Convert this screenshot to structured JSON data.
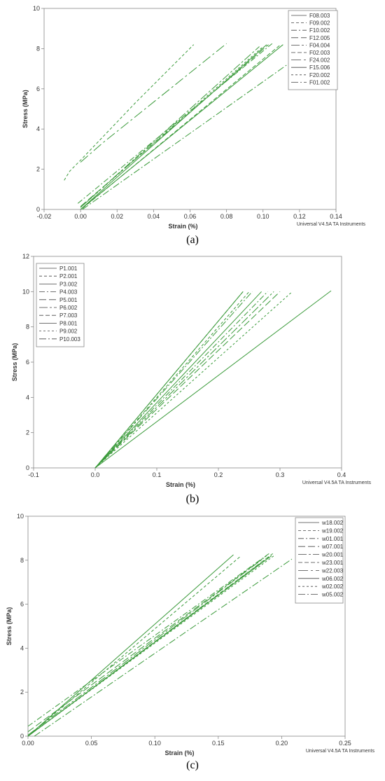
{
  "figure": {
    "panel_labels": [
      "(a)",
      "(b)",
      "(c)"
    ],
    "credit": "Universal V4.5A TA Instruments",
    "line_color": "#3a9a3a",
    "frame_color": "#888888"
  },
  "chart_data": [
    {
      "type": "line",
      "panel": "(a)",
      "xlabel": "Strain (%)",
      "ylabel": "Stress (MPa)",
      "xlim": [
        -0.02,
        0.14
      ],
      "ylim": [
        0,
        10
      ],
      "xticks": [
        -0.02,
        0,
        0.02,
        0.04,
        0.06,
        0.08,
        0.1,
        0.12,
        0.14
      ],
      "xtick_labels": [
        "-0.02",
        "0.00",
        "0.02",
        "0.04",
        "0.06",
        "0.08",
        "0.10",
        "0.12",
        "0.14"
      ],
      "yticks": [
        0,
        2,
        4,
        6,
        8,
        10
      ],
      "ytick_labels": [
        "0",
        "2",
        "4",
        "6",
        "8",
        "10"
      ],
      "legend_position": "top-right",
      "series": [
        {
          "name": "F08.003",
          "dash": "",
          "x": [
            0,
            0.102
          ],
          "y": [
            0,
            8.2
          ]
        },
        {
          "name": "F09.002",
          "dash": "4,3",
          "x": [
            -0.009,
            -0.006,
            0,
            0.03,
            0.062
          ],
          "y": [
            1.45,
            1.9,
            2.45,
            5.3,
            8.2
          ]
        },
        {
          "name": "F10.002",
          "dash": "8,3,2,3",
          "x": [
            -0.0015,
            0.105
          ],
          "y": [
            0.3,
            8.25
          ]
        },
        {
          "name": "F12.005",
          "dash": "10,4",
          "x": [
            0,
            0.103
          ],
          "y": [
            0.15,
            8.2
          ]
        },
        {
          "name": "F04.004",
          "dash": "12,3,3,3",
          "x": [
            0,
            0.098
          ],
          "y": [
            0.1,
            8.1
          ]
        },
        {
          "name": "F02.003",
          "dash": "6,3",
          "x": [
            0.001,
            0.109
          ],
          "y": [
            0.05,
            8.15
          ]
        },
        {
          "name": "F24.002",
          "dash": "14,4,3,4",
          "x": [
            0,
            0.012,
            0.08
          ],
          "y": [
            2.35,
            3.3,
            8.25
          ]
        },
        {
          "name": "F15.006",
          "dash": "",
          "x": [
            0,
            0.111
          ],
          "y": [
            0,
            8.2
          ]
        },
        {
          "name": "F20.002",
          "dash": "3,3",
          "x": [
            0,
            0.1
          ],
          "y": [
            0.1,
            8.1
          ]
        },
        {
          "name": "F01.002",
          "dash": "10,3,2,3",
          "x": [
            0.001,
            0.121
          ],
          "y": [
            0,
            7.7
          ]
        }
      ]
    },
    {
      "type": "line",
      "panel": "(b)",
      "xlabel": "Strain (%)",
      "ylabel": "Stress (MPa)",
      "xlim": [
        -0.1,
        0.4
      ],
      "ylim": [
        0,
        12
      ],
      "xticks": [
        -0.1,
        0,
        0.1,
        0.2,
        0.3,
        0.4
      ],
      "xtick_labels": [
        "-0.1",
        "0.0",
        "0.1",
        "0.2",
        "0.3",
        "0.4"
      ],
      "yticks": [
        0,
        2,
        4,
        6,
        8,
        10,
        12
      ],
      "ytick_labels": [
        "0",
        "2",
        "4",
        "6",
        "8",
        "10",
        "12"
      ],
      "legend_position": "top-left",
      "series": [
        {
          "name": "P1.001",
          "dash": "",
          "x": [
            0,
            0.24
          ],
          "y": [
            0,
            10
          ]
        },
        {
          "name": "P2.001",
          "dash": "4,3",
          "x": [
            0,
            0.25
          ],
          "y": [
            0,
            10
          ]
        },
        {
          "name": "P3.002",
          "dash": "",
          "x": [
            0,
            0.27
          ],
          "y": [
            0,
            10
          ]
        },
        {
          "name": "P4.003",
          "dash": "8,3,2,3",
          "x": [
            0,
            0.28
          ],
          "y": [
            0,
            10
          ]
        },
        {
          "name": "P5.001",
          "dash": "10,4",
          "x": [
            0,
            0.3
          ],
          "y": [
            0,
            10
          ]
        },
        {
          "name": "P6.002",
          "dash": "12,3,3,3",
          "x": [
            0,
            0.29
          ],
          "y": [
            0,
            10
          ]
        },
        {
          "name": "P7.003",
          "dash": "6,3",
          "x": [
            0,
            0.24
          ],
          "y": [
            0,
            10
          ]
        },
        {
          "name": "P8.001",
          "dash": "",
          "x": [
            0,
            0.383
          ],
          "y": [
            0,
            10.05
          ]
        },
        {
          "name": "P9.002",
          "dash": "3,3",
          "x": [
            0,
            0.32
          ],
          "y": [
            0,
            10
          ]
        },
        {
          "name": "P10.003",
          "dash": "10,3,2,3",
          "x": [
            0,
            0.255
          ],
          "y": [
            0,
            10
          ]
        }
      ]
    },
    {
      "type": "line",
      "panel": "(c)",
      "xlabel": "Strain (%)",
      "ylabel": "Stress (MPa)",
      "xlim": [
        0,
        0.25
      ],
      "ylim": [
        0,
        10
      ],
      "xticks": [
        0,
        0.05,
        0.1,
        0.15,
        0.2,
        0.25
      ],
      "xtick_labels": [
        "0.00",
        "0.05",
        "0.10",
        "0.15",
        "0.20",
        "0.25"
      ],
      "yticks": [
        0,
        2,
        4,
        6,
        8,
        10
      ],
      "ytick_labels": [
        "0",
        "2",
        "4",
        "6",
        "8",
        "10"
      ],
      "legend_position": "top-right",
      "series": [
        {
          "name": "w18.002",
          "dash": "",
          "x": [
            0,
            0.162
          ],
          "y": [
            0,
            8.25
          ]
        },
        {
          "name": "w19.002",
          "dash": "4,3",
          "x": [
            0,
            0.168
          ],
          "y": [
            0,
            8.2
          ]
        },
        {
          "name": "w01.001",
          "dash": "8,3,2,3",
          "x": [
            0,
            0.19
          ],
          "y": [
            0.45,
            8.3
          ]
        },
        {
          "name": "w07.001",
          "dash": "10,4",
          "x": [
            0,
            0.188
          ],
          "y": [
            0.2,
            8.2
          ]
        },
        {
          "name": "w20.001",
          "dash": "12,3,3,3",
          "x": [
            0,
            0.186
          ],
          "y": [
            0.05,
            8.1
          ]
        },
        {
          "name": "w23.001",
          "dash": "6,3",
          "x": [
            0,
            0.193
          ],
          "y": [
            0,
            8.3
          ]
        },
        {
          "name": "w22.003",
          "dash": "14,4,3,4",
          "x": [
            0,
            0.19
          ],
          "y": [
            0,
            8.15
          ]
        },
        {
          "name": "w06.002",
          "dash": "",
          "x": [
            0,
            0.192
          ],
          "y": [
            0,
            8.2
          ]
        },
        {
          "name": "w02.002",
          "dash": "3,3",
          "x": [
            0,
            0.195
          ],
          "y": [
            0,
            8.25
          ]
        },
        {
          "name": "w05.002",
          "dash": "10,3,2,3",
          "x": [
            0.005,
            0.208
          ],
          "y": [
            0,
            8.05
          ]
        }
      ]
    }
  ]
}
